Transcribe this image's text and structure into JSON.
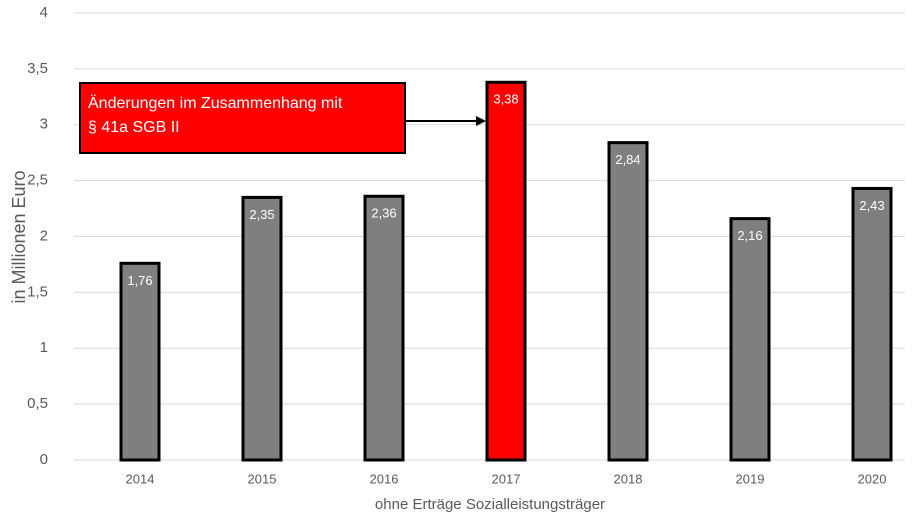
{
  "chart_data": {
    "type": "bar",
    "y_label": "in Millionen Euro",
    "x_label": "ohne Erträge Sozialleistungsträger",
    "categories": [
      "2014",
      "2015",
      "2016",
      "2017",
      "2018",
      "2019",
      "2020"
    ],
    "values": [
      1.76,
      2.35,
      2.36,
      3.38,
      2.84,
      2.16,
      2.43
    ],
    "value_labels": [
      "1,76",
      "2,35",
      "2,36",
      "3,38",
      "2,84",
      "2,16",
      "2,43"
    ],
    "colors": [
      "#7f7f7f",
      "#7f7f7f",
      "#7f7f7f",
      "#ff0000",
      "#7f7f7f",
      "#7f7f7f",
      "#7f7f7f"
    ],
    "ylim": [
      0,
      4
    ],
    "yticks": [
      0,
      {
        "value": 0.5,
        "label": "0,5"
      },
      1,
      {
        "value": 1.5,
        "label": "1,5"
      },
      2,
      {
        "value": 2.5,
        "label": "2,5"
      },
      3,
      {
        "value": 3.5,
        "label": "3,5"
      },
      4
    ],
    "grid": true,
    "annotation": [
      "Änderungen im Zusammenhang mit",
      "§ 41a SGB II"
    ]
  }
}
